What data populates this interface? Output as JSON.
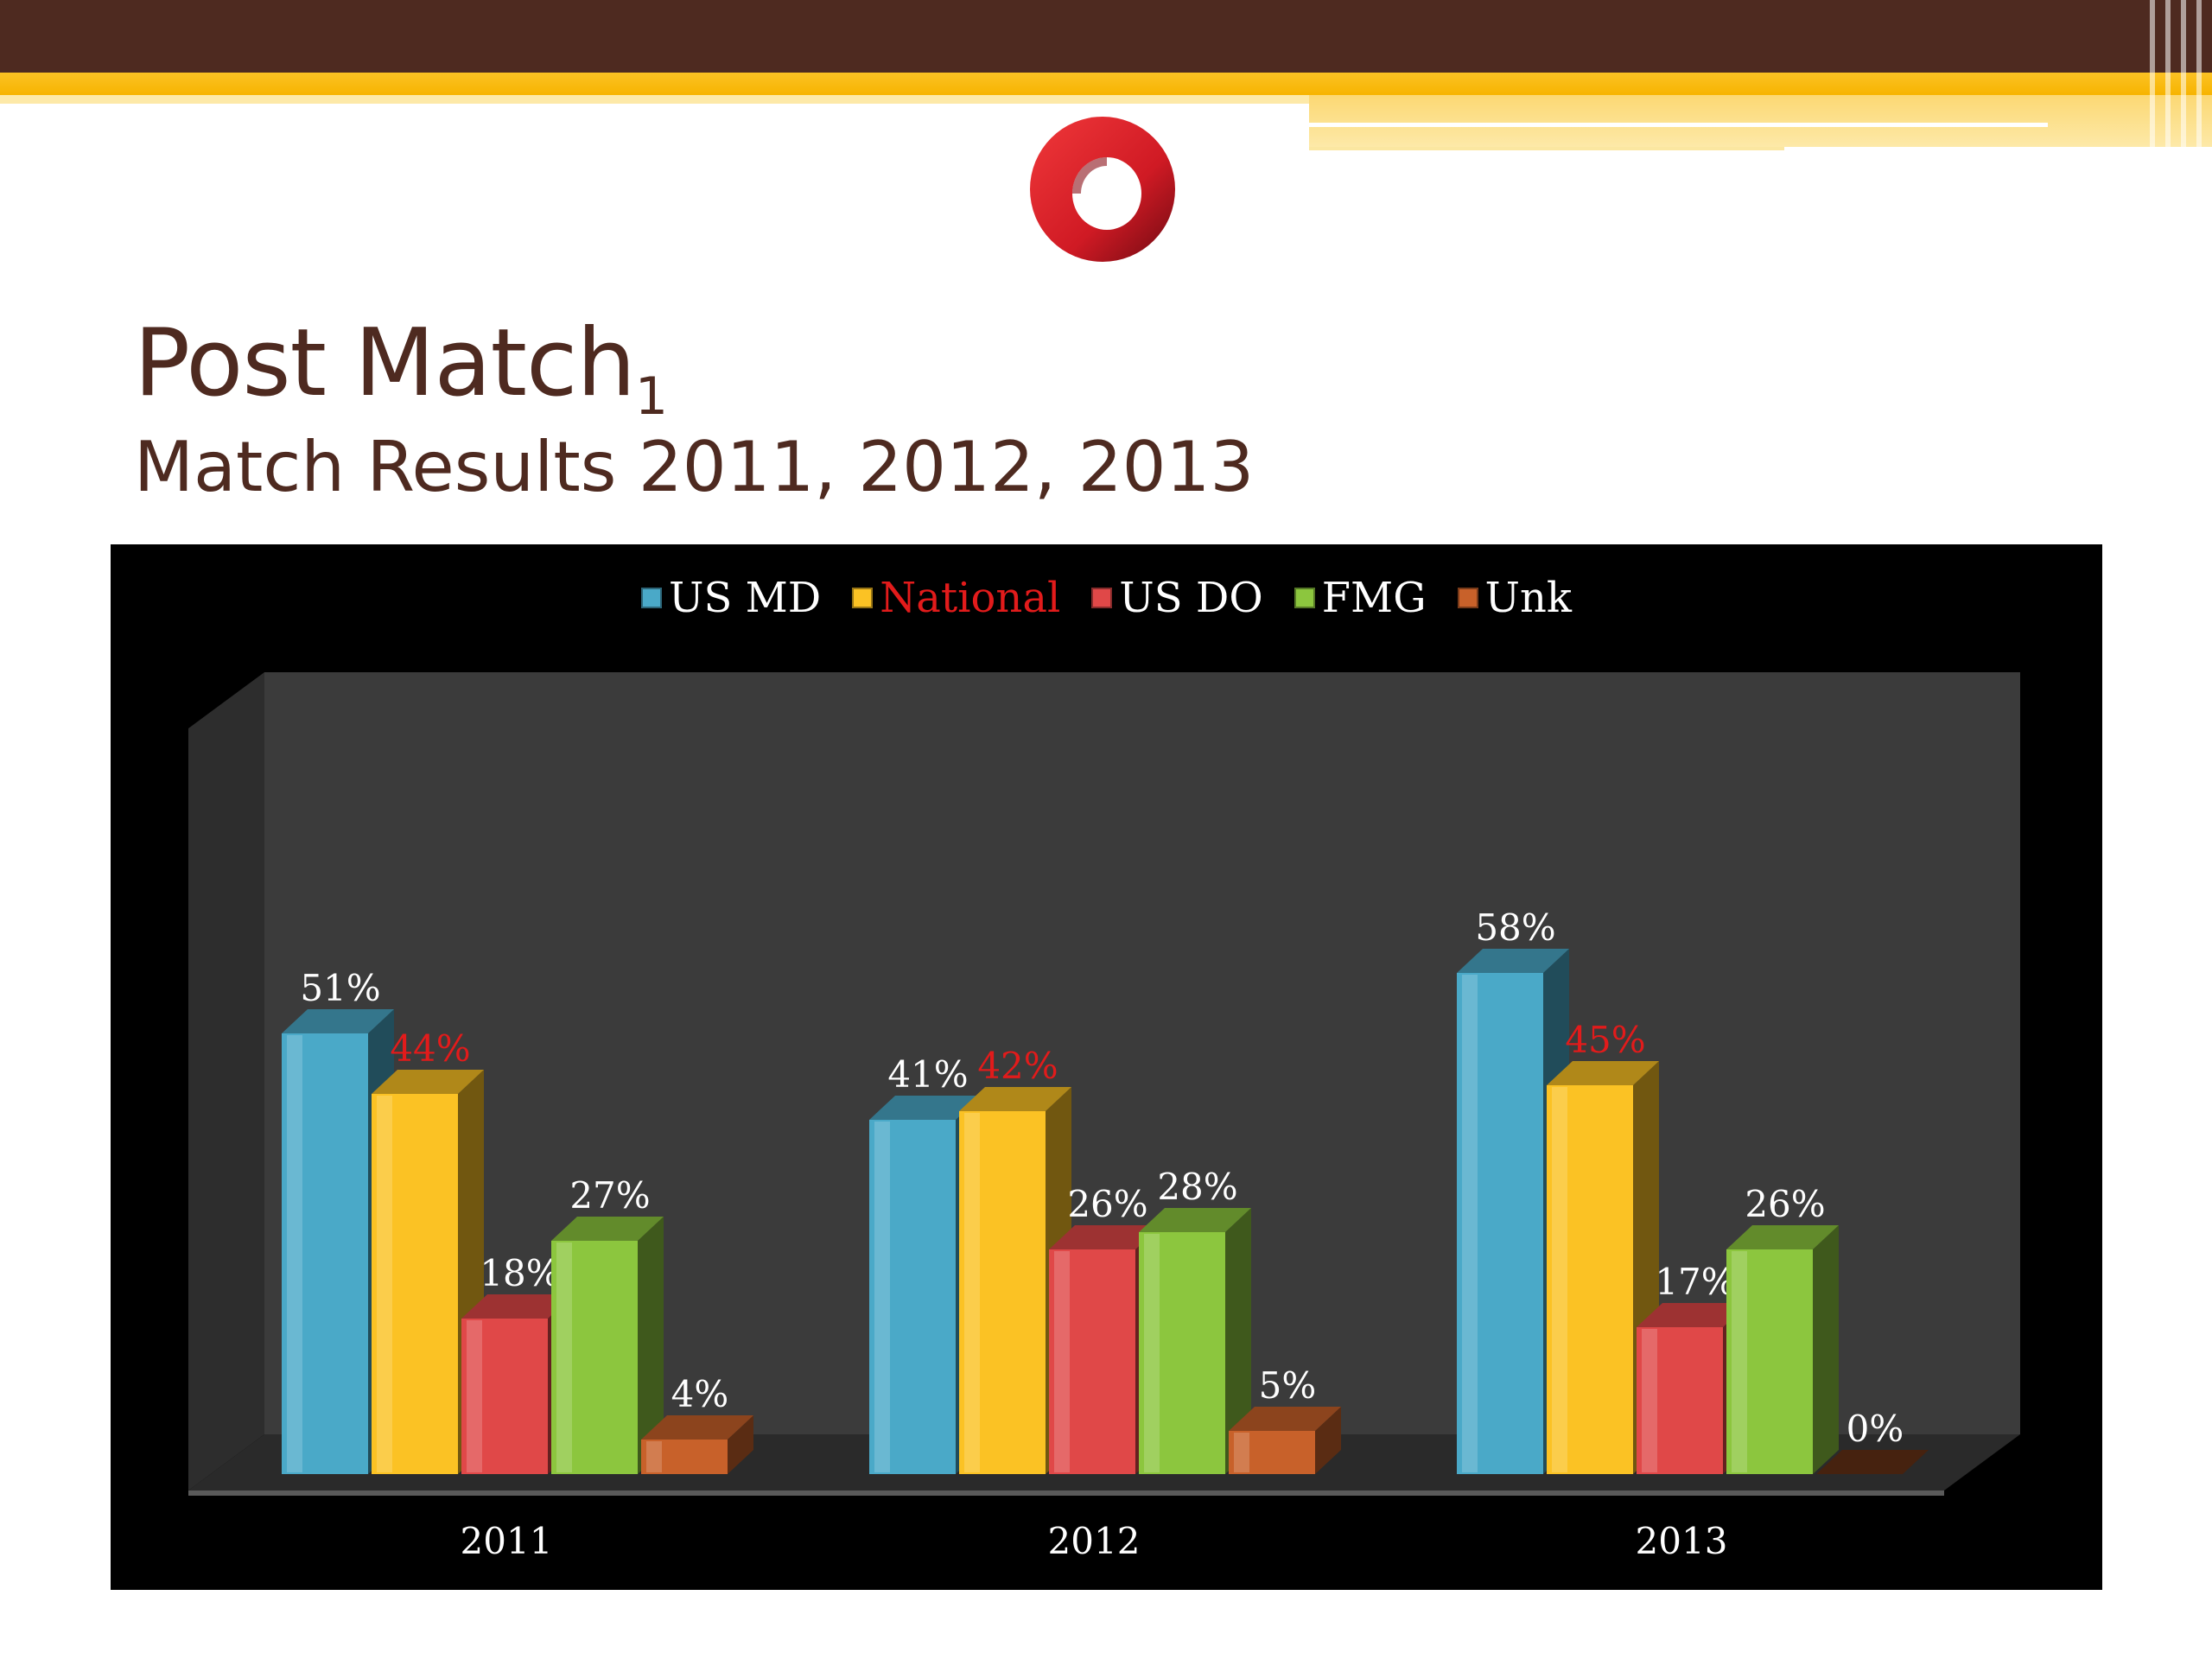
{
  "slide": {
    "title": "Post Match",
    "title_sub": "1",
    "subtitle": "Match Results 2011, 2012, 2013"
  },
  "colors": {
    "brown": "#4e2a20",
    "gold": "#fbc224",
    "highlight_red": "#e21b1b"
  },
  "chart_data": {
    "type": "bar",
    "style": "3d-clustered",
    "categories": [
      "2011",
      "2012",
      "2013"
    ],
    "series": [
      {
        "name": "US MD",
        "values": [
          51,
          41,
          58
        ],
        "labels": [
          "51%",
          "41%",
          "58%"
        ],
        "color": "#4aa9c8"
      },
      {
        "name": "National",
        "values": [
          44,
          42,
          45
        ],
        "labels": [
          "44%",
          "42%",
          "45%"
        ],
        "color": "#fbc224",
        "label_color": "#e21b1b"
      },
      {
        "name": "US DO",
        "values": [
          18,
          26,
          17
        ],
        "labels": [
          "18%",
          "26%",
          "17%"
        ],
        "color": "#e04848"
      },
      {
        "name": "FMG",
        "values": [
          27,
          28,
          26
        ],
        "labels": [
          "27%",
          "28%",
          "26%"
        ],
        "color": "#8cc63e"
      },
      {
        "name": "Unk",
        "values": [
          4,
          5,
          0
        ],
        "labels": [
          "4%",
          "5%",
          "0%"
        ],
        "color": "#c8612a"
      }
    ],
    "legend_position": "top",
    "grid": false,
    "background": "#000000",
    "wall_color": "#3c3c3c"
  }
}
